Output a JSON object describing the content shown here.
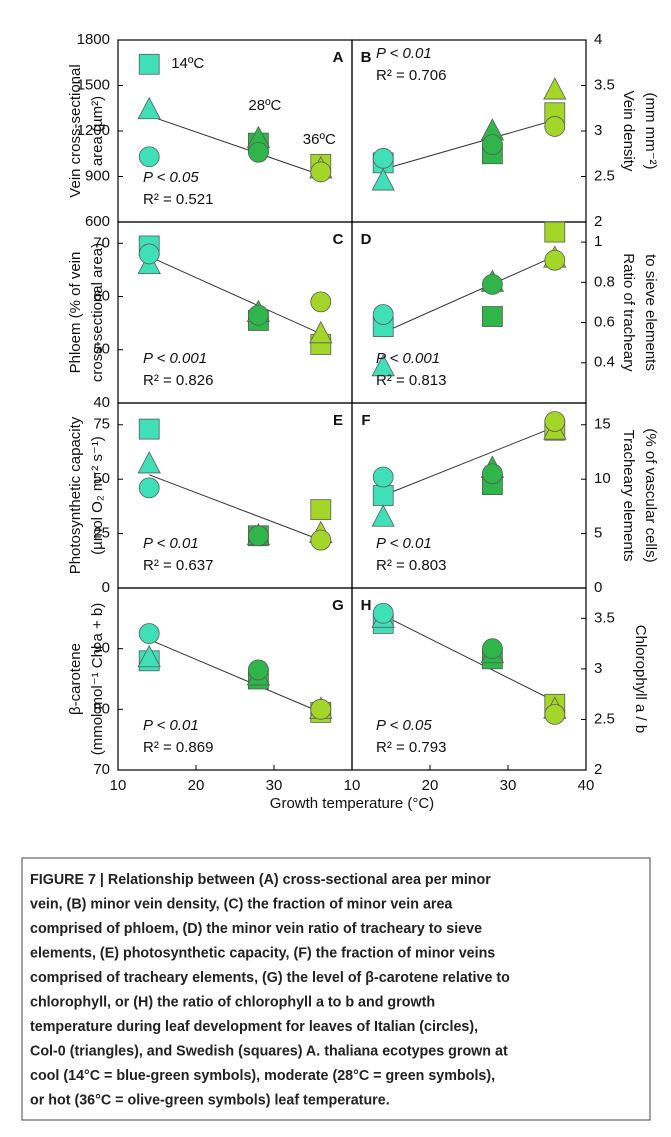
{
  "shared_xlabel": "Growth temperature (°C)",
  "point_colors": [
    "#3fe0b8",
    "#2fb54a",
    "#a4d62a"
  ],
  "temp_labels": [
    "14ºC",
    "28ºC",
    "36ºC"
  ],
  "caption": [
    "FIGURE 7 | Relationship between (A) cross-sectional area per minor",
    "vein, (B) minor vein density, (C) the fraction of minor vein area",
    "comprised of phloem, (D) the minor vein ratio of tracheary to sieve",
    "elements, (E) photosynthetic capacity, (F) the fraction of minor veins",
    "comprised of tracheary elements, (G) the level of β-carotene relative to",
    "chlorophyll, or (H) the ratio of chlorophyll a to b and growth",
    "temperature during leaf development for leaves of Italian (circles),",
    "Col-0 (triangles), and Swedish (squares) A. thaliana ecotypes grown at",
    "cool (14°C = blue-green symbols), moderate (28°C = green symbols),",
    "or hot (36°C = olive-green symbols) leaf temperature."
  ],
  "chart_data": [
    {
      "type": "scatter",
      "panel": "A",
      "ylabel": [
        "Vein cross-sectional",
        "area (µm²)"
      ],
      "x": [
        14,
        28,
        36
      ],
      "xlim": [
        10,
        40
      ],
      "xticks": [
        10,
        20,
        30
      ],
      "ylim": [
        600,
        1800
      ],
      "yticks": [
        600,
        900,
        1200,
        1500,
        1800
      ],
      "series": [
        {
          "marker": "square",
          "values": [
            1640,
            1120,
            980
          ]
        },
        {
          "marker": "triangle",
          "values": [
            1340,
            1150,
            950
          ]
        },
        {
          "marker": "circle",
          "values": [
            1030,
            1060,
            930
          ]
        }
      ],
      "fit_x": [
        14,
        36
      ],
      "fit_y": [
        1300,
        910
      ],
      "p": "P < 0.05",
      "r2": "R² = 0.521"
    },
    {
      "type": "scatter",
      "panel": "B",
      "ylabel": [
        "Vein density",
        "(mm mm⁻²)"
      ],
      "x": [
        14,
        28,
        36
      ],
      "xlim": [
        10,
        40
      ],
      "xticks": [
        10,
        20,
        30,
        40
      ],
      "ylim": [
        2,
        4
      ],
      "yticks": [
        2,
        2.5,
        3,
        3.5,
        4
      ],
      "series": [
        {
          "marker": "square",
          "values": [
            2.65,
            2.75,
            3.2
          ]
        },
        {
          "marker": "triangle",
          "values": [
            2.45,
            3.0,
            3.45
          ]
        },
        {
          "marker": "circle",
          "values": [
            2.7,
            2.85,
            3.05
          ]
        }
      ],
      "fit_x": [
        14,
        36
      ],
      "fit_y": [
        2.58,
        3.12
      ],
      "p": "P < 0.01",
      "r2": "R² = 0.706"
    },
    {
      "type": "scatter",
      "panel": "C",
      "ylabel": [
        "Phloem (% of vein",
        "cross-sectional area)"
      ],
      "x": [
        14,
        28,
        36
      ],
      "xlim": [
        10,
        40
      ],
      "xticks": [
        10,
        20,
        30
      ],
      "ylim": [
        40,
        74
      ],
      "yticks": [
        40,
        50,
        60,
        70
      ],
      "series": [
        {
          "marker": "square",
          "values": [
            69.5,
            55.5,
            51
          ]
        },
        {
          "marker": "triangle",
          "values": [
            66,
            57,
            53
          ]
        },
        {
          "marker": "circle",
          "values": [
            68,
            56.5,
            59
          ]
        }
      ],
      "fit_x": [
        14,
        36
      ],
      "fit_y": [
        67.5,
        53
      ],
      "p": "P < 0.001",
      "r2": "R² = 0.826"
    },
    {
      "type": "scatter",
      "panel": "D",
      "ylabel": [
        "Ratio of tracheary",
        "to sieve elements"
      ],
      "x": [
        14,
        28,
        36
      ],
      "xlim": [
        10,
        40
      ],
      "xticks": [
        10,
        20,
        30,
        40
      ],
      "ylim": [
        0.2,
        1.1
      ],
      "yticks": [
        0.4,
        0.6,
        0.8,
        1
      ],
      "series": [
        {
          "marker": "square",
          "values": [
            0.58,
            0.63,
            1.05
          ]
        },
        {
          "marker": "triangle",
          "values": [
            0.38,
            0.8,
            0.92
          ]
        },
        {
          "marker": "circle",
          "values": [
            0.64,
            0.79,
            0.91
          ]
        }
      ],
      "fit_x": [
        14,
        36
      ],
      "fit_y": [
        0.55,
        0.93
      ],
      "p": "P < 0.001",
      "r2": "R² = 0.813"
    },
    {
      "type": "scatter",
      "panel": "E",
      "ylabel": [
        "Photosynthetic capacity",
        "(µmol O₂ m⁻² s⁻¹)"
      ],
      "x": [
        14,
        28,
        36
      ],
      "xlim": [
        10,
        40
      ],
      "xticks": [
        10,
        20,
        30
      ],
      "ylim": [
        0,
        85
      ],
      "yticks": [
        0,
        25,
        50,
        75
      ],
      "series": [
        {
          "marker": "square",
          "values": [
            73,
            24,
            36
          ]
        },
        {
          "marker": "triangle",
          "values": [
            57,
            24,
            25
          ]
        },
        {
          "marker": "circle",
          "values": [
            46,
            24,
            22
          ]
        }
      ],
      "fit_x": [
        14,
        36
      ],
      "fit_y": [
        52,
        22
      ],
      "p": "P < 0.01",
      "r2": "R² = 0.637"
    },
    {
      "type": "scatter",
      "panel": "F",
      "ylabel": [
        "Tracheary elements",
        "(% of vascular cells)"
      ],
      "x": [
        14,
        28,
        36
      ],
      "xlim": [
        10,
        40
      ],
      "xticks": [
        10,
        20,
        30,
        40
      ],
      "ylim": [
        0,
        17
      ],
      "yticks": [
        0,
        5,
        10,
        15
      ],
      "series": [
        {
          "marker": "square",
          "values": [
            8.5,
            9.5,
            14.5
          ]
        },
        {
          "marker": "triangle",
          "values": [
            6.5,
            11,
            14.5
          ]
        },
        {
          "marker": "circle",
          "values": [
            10.2,
            10.5,
            15.3
          ]
        }
      ],
      "fit_x": [
        14,
        36
      ],
      "fit_y": [
        8.5,
        14.8
      ],
      "p": "P < 0.01",
      "r2": "R² = 0.803"
    },
    {
      "type": "scatter",
      "panel": "G",
      "ylabel": [
        "β-carotene",
        "(mmol mol⁻¹ Chl a + b)"
      ],
      "x": [
        14,
        28,
        36
      ],
      "xlim": [
        10,
        40
      ],
      "xticks": [
        10,
        20,
        30
      ],
      "ylim": [
        70,
        100
      ],
      "yticks": [
        70,
        80,
        90
      ],
      "series": [
        {
          "marker": "square",
          "values": [
            88,
            85,
            79.5
          ]
        },
        {
          "marker": "triangle",
          "values": [
            88.5,
            85.5,
            80
          ]
        },
        {
          "marker": "circle",
          "values": [
            92.5,
            86.5,
            80
          ]
        }
      ],
      "fit_x": [
        14,
        36
      ],
      "fit_y": [
        91.5,
        79.5
      ],
      "p": "P < 0.01",
      "r2": "R² = 0.869"
    },
    {
      "type": "scatter",
      "panel": "H",
      "ylabel": [
        "Chlorophyll a / b"
      ],
      "x": [
        14,
        28,
        36
      ],
      "xlim": [
        10,
        40
      ],
      "xticks": [
        10,
        20,
        30,
        40
      ],
      "ylim": [
        2,
        3.8
      ],
      "yticks": [
        2,
        2.5,
        3,
        3.5
      ],
      "series": [
        {
          "marker": "square",
          "values": [
            3.45,
            3.1,
            2.65
          ]
        },
        {
          "marker": "triangle",
          "values": [
            3.5,
            3.15,
            2.6
          ]
        },
        {
          "marker": "circle",
          "values": [
            3.55,
            3.2,
            2.55
          ]
        }
      ],
      "fit_x": [
        14,
        36
      ],
      "fit_y": [
        3.53,
        2.68
      ],
      "p": "P < 0.05",
      "r2": "R² = 0.793"
    }
  ]
}
